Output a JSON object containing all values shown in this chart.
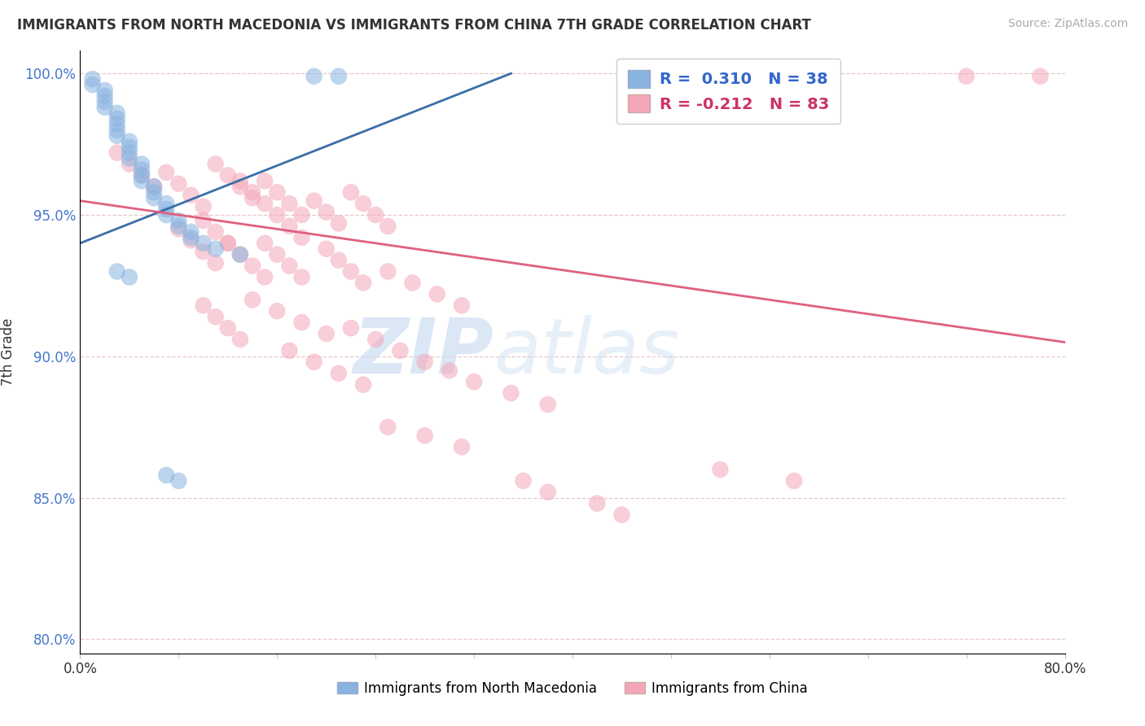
{
  "title": "IMMIGRANTS FROM NORTH MACEDONIA VS IMMIGRANTS FROM CHINA 7TH GRADE CORRELATION CHART",
  "source": "Source: ZipAtlas.com",
  "ylabel_label": "7th Grade",
  "r_blue": 0.31,
  "n_blue": 38,
  "r_pink": -0.212,
  "n_pink": 83,
  "x_min": 0.0,
  "x_max": 0.8,
  "y_min": 0.795,
  "y_max": 1.008,
  "yticks": [
    0.8,
    0.85,
    0.9,
    0.95,
    1.0
  ],
  "ytick_labels": [
    "80.0%",
    "85.0%",
    "90.0%",
    "95.0%",
    "100.0%"
  ],
  "blue_color": "#8ab4e0",
  "pink_color": "#f4a7b9",
  "blue_line_color": "#3a6ea8",
  "pink_line_color": "#e06080",
  "legend_r_blue": "R =  0.310",
  "legend_n_blue": "N = 38",
  "legend_r_pink": "R = -0.212",
  "legend_n_pink": "N = 83",
  "blue_trend_x": [
    0.0,
    0.35
  ],
  "blue_trend_y": [
    0.94,
    1.0
  ],
  "pink_trend_x": [
    0.0,
    0.8
  ],
  "pink_trend_y": [
    0.955,
    0.905
  ],
  "blue_scatter": [
    [
      0.01,
      0.998
    ],
    [
      0.01,
      0.996
    ],
    [
      0.02,
      0.994
    ],
    [
      0.02,
      0.992
    ],
    [
      0.02,
      0.99
    ],
    [
      0.02,
      0.988
    ],
    [
      0.03,
      0.986
    ],
    [
      0.03,
      0.984
    ],
    [
      0.03,
      0.982
    ],
    [
      0.03,
      0.98
    ],
    [
      0.03,
      0.978
    ],
    [
      0.04,
      0.976
    ],
    [
      0.04,
      0.974
    ],
    [
      0.04,
      0.972
    ],
    [
      0.04,
      0.97
    ],
    [
      0.05,
      0.968
    ],
    [
      0.05,
      0.966
    ],
    [
      0.05,
      0.964
    ],
    [
      0.05,
      0.962
    ],
    [
      0.06,
      0.96
    ],
    [
      0.06,
      0.958
    ],
    [
      0.06,
      0.956
    ],
    [
      0.07,
      0.954
    ],
    [
      0.07,
      0.952
    ],
    [
      0.07,
      0.95
    ],
    [
      0.08,
      0.948
    ],
    [
      0.08,
      0.946
    ],
    [
      0.09,
      0.944
    ],
    [
      0.09,
      0.942
    ],
    [
      0.1,
      0.94
    ],
    [
      0.11,
      0.938
    ],
    [
      0.13,
      0.936
    ],
    [
      0.07,
      0.858
    ],
    [
      0.08,
      0.856
    ],
    [
      0.19,
      0.999
    ],
    [
      0.21,
      0.999
    ],
    [
      0.03,
      0.93
    ],
    [
      0.04,
      0.928
    ]
  ],
  "pink_scatter": [
    [
      0.03,
      0.972
    ],
    [
      0.04,
      0.968
    ],
    [
      0.05,
      0.964
    ],
    [
      0.06,
      0.96
    ],
    [
      0.07,
      0.965
    ],
    [
      0.08,
      0.961
    ],
    [
      0.09,
      0.957
    ],
    [
      0.1,
      0.953
    ],
    [
      0.11,
      0.968
    ],
    [
      0.12,
      0.964
    ],
    [
      0.13,
      0.96
    ],
    [
      0.14,
      0.956
    ],
    [
      0.15,
      0.962
    ],
    [
      0.16,
      0.958
    ],
    [
      0.17,
      0.954
    ],
    [
      0.18,
      0.95
    ],
    [
      0.1,
      0.948
    ],
    [
      0.11,
      0.944
    ],
    [
      0.12,
      0.94
    ],
    [
      0.13,
      0.962
    ],
    [
      0.14,
      0.958
    ],
    [
      0.15,
      0.954
    ],
    [
      0.16,
      0.95
    ],
    [
      0.17,
      0.946
    ],
    [
      0.18,
      0.942
    ],
    [
      0.19,
      0.955
    ],
    [
      0.2,
      0.951
    ],
    [
      0.21,
      0.947
    ],
    [
      0.22,
      0.958
    ],
    [
      0.23,
      0.954
    ],
    [
      0.24,
      0.95
    ],
    [
      0.25,
      0.946
    ],
    [
      0.08,
      0.945
    ],
    [
      0.09,
      0.941
    ],
    [
      0.1,
      0.937
    ],
    [
      0.11,
      0.933
    ],
    [
      0.15,
      0.94
    ],
    [
      0.16,
      0.936
    ],
    [
      0.17,
      0.932
    ],
    [
      0.18,
      0.928
    ],
    [
      0.2,
      0.938
    ],
    [
      0.21,
      0.934
    ],
    [
      0.22,
      0.93
    ],
    [
      0.23,
      0.926
    ],
    [
      0.12,
      0.94
    ],
    [
      0.13,
      0.936
    ],
    [
      0.14,
      0.932
    ],
    [
      0.15,
      0.928
    ],
    [
      0.14,
      0.92
    ],
    [
      0.16,
      0.916
    ],
    [
      0.18,
      0.912
    ],
    [
      0.2,
      0.908
    ],
    [
      0.1,
      0.918
    ],
    [
      0.11,
      0.914
    ],
    [
      0.12,
      0.91
    ],
    [
      0.13,
      0.906
    ],
    [
      0.25,
      0.93
    ],
    [
      0.27,
      0.926
    ],
    [
      0.29,
      0.922
    ],
    [
      0.31,
      0.918
    ],
    [
      0.22,
      0.91
    ],
    [
      0.24,
      0.906
    ],
    [
      0.26,
      0.902
    ],
    [
      0.28,
      0.898
    ],
    [
      0.17,
      0.902
    ],
    [
      0.19,
      0.898
    ],
    [
      0.21,
      0.894
    ],
    [
      0.23,
      0.89
    ],
    [
      0.3,
      0.895
    ],
    [
      0.32,
      0.891
    ],
    [
      0.35,
      0.887
    ],
    [
      0.38,
      0.883
    ],
    [
      0.25,
      0.875
    ],
    [
      0.28,
      0.872
    ],
    [
      0.31,
      0.868
    ],
    [
      0.36,
      0.856
    ],
    [
      0.38,
      0.852
    ],
    [
      0.42,
      0.848
    ],
    [
      0.44,
      0.844
    ],
    [
      0.52,
      0.86
    ],
    [
      0.58,
      0.856
    ],
    [
      0.72,
      0.999
    ],
    [
      0.78,
      0.999
    ]
  ],
  "watermark_zip": "ZIP",
  "watermark_atlas": "atlas",
  "background_color": "#ffffff",
  "grid_color": "#e8c8c8",
  "fig_width": 14.06,
  "fig_height": 8.92
}
